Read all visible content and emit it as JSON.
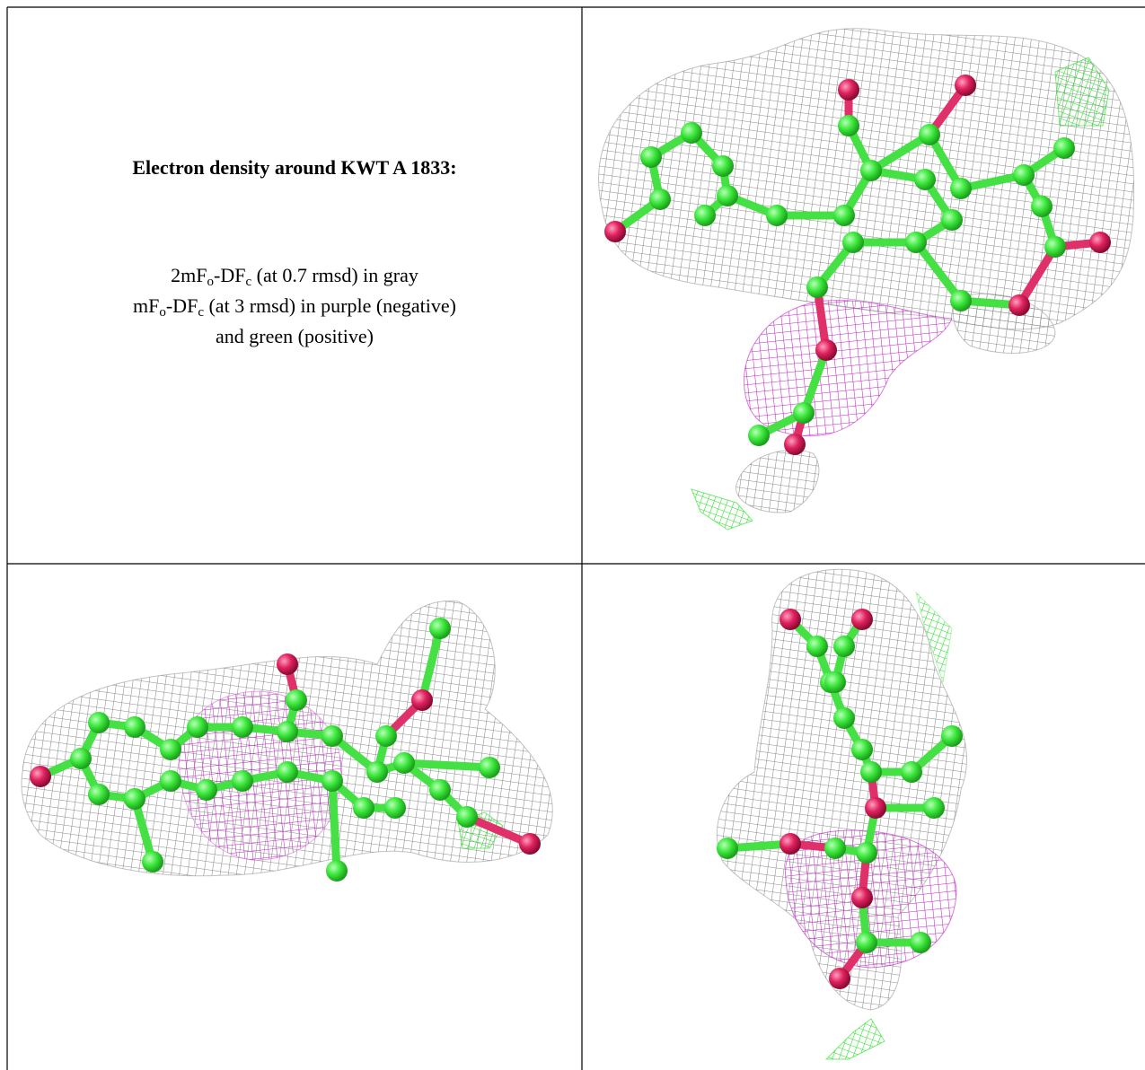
{
  "caption": {
    "title": "Electron density around KWT A 1833:",
    "lines": [
      [
        "2mF",
        "o",
        "-DF",
        "c",
        " (at 0.7 rmsd) in gray"
      ],
      [
        "mF",
        "o",
        "-DF",
        "c",
        " (at 3 rmsd) in purple (negative)"
      ],
      [
        "and green (positive)"
      ]
    ]
  }
}
